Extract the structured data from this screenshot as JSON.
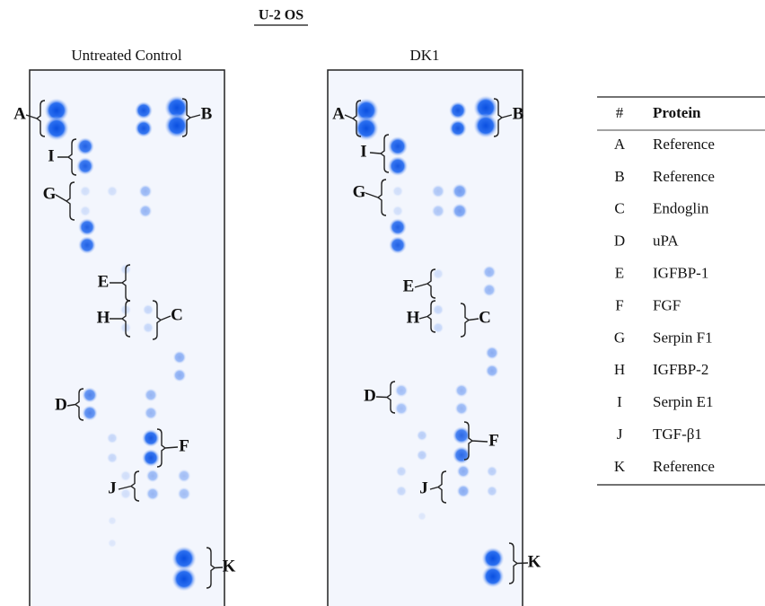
{
  "title": "U-2 OS",
  "panels": [
    {
      "label": "Untreated Control",
      "brackets": [
        "A",
        "B",
        "I",
        "G",
        "E",
        "H",
        "C",
        "D",
        "F",
        "J",
        "K"
      ]
    },
    {
      "label": "DK1",
      "brackets": [
        "A",
        "B",
        "I",
        "G",
        "E",
        "H",
        "C",
        "D",
        "F",
        "J",
        "K"
      ]
    }
  ],
  "table": {
    "header": [
      "#",
      "Protein"
    ],
    "rows": [
      [
        "A",
        "Reference"
      ],
      [
        "B",
        "Reference"
      ],
      [
        "C",
        "Endoglin"
      ],
      [
        "D",
        "uPA"
      ],
      [
        "E",
        "IGFBP-1"
      ],
      [
        "F",
        "FGF"
      ],
      [
        "G",
        "Serpin F1"
      ],
      [
        "H",
        "IGFBP-2"
      ],
      [
        "I",
        "Serpin E1"
      ],
      [
        "J",
        "TGF-β1"
      ],
      [
        "K",
        "Reference"
      ]
    ]
  }
}
